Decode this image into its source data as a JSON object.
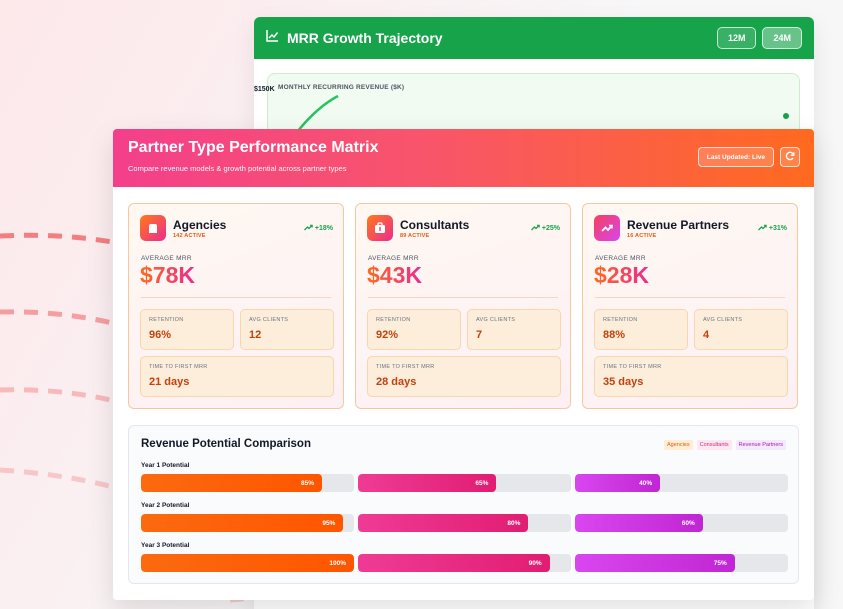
{
  "back": {
    "title": "MRR Growth Trajectory",
    "range_buttons": [
      "12M",
      "24M"
    ],
    "active_range": "24M",
    "chart_title": "MONTHLY RECURRING REVENUE ($K)",
    "y_tick": "$150K"
  },
  "front": {
    "title": "Partner Type Performance Matrix",
    "subtitle": "Compare revenue models & growth potential across partner types",
    "updated": "Last Updated: Live"
  },
  "partners": [
    {
      "name": "Agencies",
      "active": "142 ACTIVE",
      "trend": "+18%",
      "mrr_label": "AVERAGE MRR",
      "mrr": "$78K",
      "retention_label": "RETENTION",
      "retention": "96%",
      "clients_label": "AVG CLIENTS",
      "clients": "12",
      "time_label": "TIME TO FIRST MRR",
      "time": "21 days",
      "icon": "building-icon",
      "icon_color": "#f59e0b"
    },
    {
      "name": "Consultants",
      "active": "89 ACTIVE",
      "trend": "+25%",
      "mrr_label": "AVERAGE MRR",
      "mrr": "$43K",
      "retention_label": "RETENTION",
      "retention": "92%",
      "clients_label": "AVG CLIENTS",
      "clients": "7",
      "time_label": "TIME TO FIRST MRR",
      "time": "28 days",
      "icon": "briefcase-icon",
      "icon_color": "#f43f5e"
    },
    {
      "name": "Revenue Partners",
      "active": "16 ACTIVE",
      "trend": "+31%",
      "mrr_label": "AVERAGE MRR",
      "mrr": "$28K",
      "retention_label": "RETENTION",
      "retention": "88%",
      "clients_label": "AVG CLIENTS",
      "clients": "4",
      "time_label": "TIME TO FIRST MRR",
      "time": "35 days",
      "icon": "trending-up-icon",
      "icon_color": "#ec4899"
    }
  ],
  "potential": {
    "title": "Revenue Potential Comparison",
    "legend": [
      "Agencies",
      "Consultants",
      "Revenue Partners"
    ],
    "rows": [
      {
        "label": "Year 1 Potential",
        "values": [
          85,
          65,
          40
        ],
        "texts": [
          "85%",
          "65%",
          "40%"
        ]
      },
      {
        "label": "Year 2 Potential",
        "values": [
          95,
          80,
          60
        ],
        "texts": [
          "95%",
          "80%",
          "60%"
        ]
      },
      {
        "label": "Year 3 Potential",
        "values": [
          100,
          90,
          75
        ],
        "texts": [
          "100%",
          "90%",
          "75%"
        ]
      }
    ]
  }
}
